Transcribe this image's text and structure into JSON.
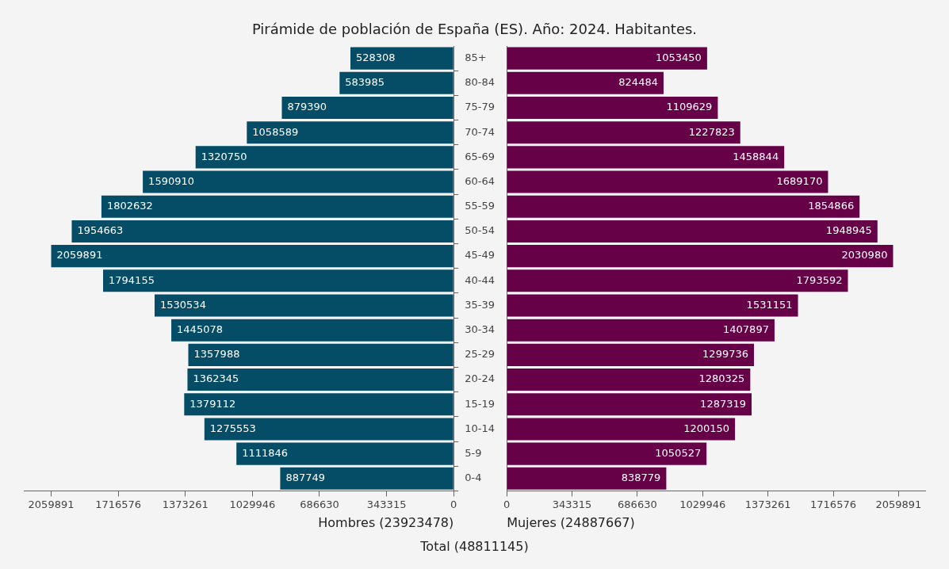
{
  "chart_data": [
    {
      "type": "bar",
      "orientation": "horizontal",
      "title": "Pirámide de población de España (ES). Año: 2024. Habitantes.",
      "xlabel": "Hombres (23923478)",
      "annotations": [
        "Total (48811145)"
      ],
      "categories": [
        "85+",
        "80-84",
        "75-79",
        "70-74",
        "65-69",
        "60-64",
        "55-59",
        "50-54",
        "45-49",
        "40-44",
        "35-39",
        "30-34",
        "25-29",
        "20-24",
        "15-19",
        "10-14",
        "5-9",
        "0-4"
      ],
      "series": [
        {
          "color": "#054d66",
          "values": [
            528308,
            583985,
            879390,
            1058589,
            1320750,
            1590910,
            1802632,
            1954663,
            2059891,
            1794155,
            1530534,
            1445078,
            1357988,
            1362345,
            1379112,
            1275553,
            1111846,
            887749
          ]
        }
      ],
      "xlim": [
        2200000,
        0
      ],
      "xticks": [
        2059891,
        1716576,
        1373261,
        1029946,
        686630,
        343315,
        0
      ],
      "data_labels": true,
      "grid": false,
      "legend": false
    },
    {
      "type": "bar",
      "orientation": "horizontal",
      "xlabel": "Mujeres (24887667)",
      "categories": [
        "85+",
        "80-84",
        "75-79",
        "70-74",
        "65-69",
        "60-64",
        "55-59",
        "50-54",
        "45-49",
        "40-44",
        "35-39",
        "30-34",
        "25-29",
        "20-24",
        "15-19",
        "10-14",
        "5-9",
        "0-4"
      ],
      "series": [
        {
          "color": "#660047",
          "values": [
            1053450,
            824484,
            1109629,
            1227823,
            1458844,
            1689170,
            1854866,
            1948945,
            2030980,
            1793592,
            1531151,
            1407897,
            1299736,
            1280325,
            1287319,
            1200150,
            1050527,
            838779
          ]
        }
      ],
      "xlim": [
        0,
        2200000
      ],
      "xticks": [
        0,
        343315,
        686630,
        1029946,
        1373261,
        1716576,
        2059891
      ],
      "tick_labels": "x",
      "data_labels": true,
      "grid": false,
      "legend": false
    }
  ]
}
